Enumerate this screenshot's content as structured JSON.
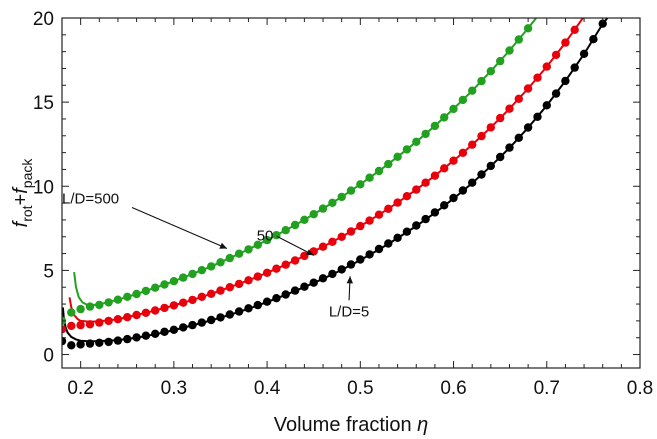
{
  "chart_data": {
    "type": "scatter",
    "title": "",
    "xlabel_main": "Volume fraction ",
    "xlabel_symbol": "η",
    "ylabel_parts": {
      "f1": "f",
      "sub1": "rot",
      "plus": "+",
      "f2": "f",
      "sub2": "pack"
    },
    "xlim": [
      0.18,
      0.8
    ],
    "ylim": [
      -0.8,
      20
    ],
    "x_ticks": [
      0.2,
      0.3,
      0.4,
      0.5,
      0.6,
      0.7,
      0.8
    ],
    "x_tick_labels": [
      "0.2",
      "0.3",
      "0.4",
      "0.5",
      "0.6",
      "0.7",
      "0.8"
    ],
    "y_ticks": [
      0,
      5,
      10,
      15,
      20
    ],
    "y_tick_labels": [
      "0",
      "5",
      "10",
      "15",
      "20"
    ],
    "grid": false,
    "annotations": [
      {
        "text": "L/D=500",
        "series": "L/D=500",
        "x": 0.357,
        "y": 6.3
      },
      {
        "text": "50",
        "series": "L/D=50",
        "x": 0.45,
        "y": 5.9
      },
      {
        "text": "L/D=5",
        "series": "L/D=5",
        "x": 0.489,
        "y": 4.65
      }
    ],
    "series": [
      {
        "name": "L/D=5",
        "color": "#000000",
        "points": [
          [
            0.18,
            0.8
          ],
          [
            0.19,
            0.55
          ],
          [
            0.2,
            0.6
          ],
          [
            0.21,
            0.65
          ],
          [
            0.22,
            0.7
          ],
          [
            0.23,
            0.75
          ],
          [
            0.24,
            0.83
          ],
          [
            0.25,
            0.92
          ],
          [
            0.26,
            1.02
          ],
          [
            0.27,
            1.12
          ],
          [
            0.28,
            1.23
          ],
          [
            0.29,
            1.35
          ],
          [
            0.3,
            1.47
          ],
          [
            0.31,
            1.61
          ],
          [
            0.32,
            1.75
          ],
          [
            0.33,
            1.9
          ],
          [
            0.34,
            2.05
          ],
          [
            0.35,
            2.21
          ],
          [
            0.36,
            2.38
          ],
          [
            0.37,
            2.56
          ],
          [
            0.38,
            2.75
          ],
          [
            0.39,
            2.94
          ],
          [
            0.4,
            3.14
          ],
          [
            0.41,
            3.35
          ],
          [
            0.42,
            3.57
          ],
          [
            0.43,
            3.8
          ],
          [
            0.44,
            4.03
          ],
          [
            0.45,
            4.27
          ],
          [
            0.46,
            4.53
          ],
          [
            0.47,
            4.79
          ],
          [
            0.48,
            5.06
          ],
          [
            0.49,
            5.35
          ],
          [
            0.5,
            5.65
          ],
          [
            0.51,
            5.95
          ],
          [
            0.52,
            6.27
          ],
          [
            0.53,
            6.6
          ],
          [
            0.54,
            6.94
          ],
          [
            0.55,
            7.3
          ],
          [
            0.56,
            7.67
          ],
          [
            0.57,
            8.05
          ],
          [
            0.58,
            8.45
          ],
          [
            0.59,
            8.87
          ],
          [
            0.6,
            9.3
          ],
          [
            0.61,
            9.75
          ],
          [
            0.62,
            10.21
          ],
          [
            0.63,
            10.7
          ],
          [
            0.64,
            11.21
          ],
          [
            0.65,
            11.74
          ],
          [
            0.66,
            12.3
          ],
          [
            0.67,
            12.88
          ],
          [
            0.68,
            13.49
          ],
          [
            0.69,
            14.13
          ],
          [
            0.7,
            14.81
          ],
          [
            0.71,
            15.51
          ],
          [
            0.72,
            16.26
          ],
          [
            0.73,
            17.05
          ],
          [
            0.74,
            17.87
          ],
          [
            0.75,
            18.74
          ],
          [
            0.76,
            19.66
          ]
        ],
        "curve": [
          [
            0.181,
            2.8
          ],
          [
            0.182,
            2.1
          ],
          [
            0.184,
            1.6
          ],
          [
            0.186,
            1.3
          ],
          [
            0.19,
            1.05
          ],
          [
            0.195,
            0.9
          ],
          [
            0.2,
            0.82
          ],
          [
            0.21,
            0.78
          ],
          [
            0.22,
            0.8
          ],
          [
            0.24,
            0.86
          ],
          [
            0.26,
            1.0
          ],
          [
            0.28,
            1.2
          ],
          [
            0.3,
            1.45
          ],
          [
            0.32,
            1.73
          ],
          [
            0.34,
            2.03
          ],
          [
            0.36,
            2.36
          ],
          [
            0.38,
            2.72
          ],
          [
            0.4,
            3.12
          ],
          [
            0.42,
            3.55
          ],
          [
            0.44,
            4.01
          ],
          [
            0.46,
            4.5
          ],
          [
            0.48,
            5.03
          ],
          [
            0.5,
            5.61
          ],
          [
            0.52,
            6.24
          ],
          [
            0.54,
            6.92
          ],
          [
            0.56,
            7.64
          ],
          [
            0.58,
            8.42
          ],
          [
            0.6,
            9.27
          ],
          [
            0.62,
            10.19
          ],
          [
            0.64,
            11.19
          ],
          [
            0.66,
            12.28
          ],
          [
            0.68,
            13.48
          ],
          [
            0.7,
            14.8
          ],
          [
            0.72,
            16.26
          ],
          [
            0.74,
            17.86
          ],
          [
            0.76,
            19.65
          ],
          [
            0.765,
            20
          ]
        ]
      },
      {
        "name": "L/D=50",
        "color": "#e8000b",
        "points": [
          [
            0.18,
            1.5
          ],
          [
            0.19,
            1.7
          ],
          [
            0.2,
            1.75
          ],
          [
            0.21,
            1.8
          ],
          [
            0.22,
            1.9
          ],
          [
            0.23,
            2.0
          ],
          [
            0.24,
            2.1
          ],
          [
            0.25,
            2.22
          ],
          [
            0.26,
            2.35
          ],
          [
            0.27,
            2.48
          ],
          [
            0.28,
            2.62
          ],
          [
            0.29,
            2.77
          ],
          [
            0.3,
            2.92
          ],
          [
            0.31,
            3.08
          ],
          [
            0.32,
            3.25
          ],
          [
            0.33,
            3.43
          ],
          [
            0.34,
            3.61
          ],
          [
            0.35,
            3.8
          ],
          [
            0.36,
            4.0
          ],
          [
            0.37,
            4.2
          ],
          [
            0.38,
            4.41
          ],
          [
            0.39,
            4.63
          ],
          [
            0.4,
            4.86
          ],
          [
            0.41,
            5.1
          ],
          [
            0.42,
            5.34
          ],
          [
            0.43,
            5.59
          ],
          [
            0.44,
            5.86
          ],
          [
            0.45,
            6.13
          ],
          [
            0.46,
            6.41
          ],
          [
            0.47,
            6.7
          ],
          [
            0.48,
            7.0
          ],
          [
            0.49,
            7.31
          ],
          [
            0.5,
            7.63
          ],
          [
            0.51,
            7.96
          ],
          [
            0.52,
            8.31
          ],
          [
            0.53,
            8.66
          ],
          [
            0.54,
            9.03
          ],
          [
            0.55,
            9.41
          ],
          [
            0.56,
            9.8
          ],
          [
            0.57,
            10.21
          ],
          [
            0.58,
            10.63
          ],
          [
            0.59,
            11.07
          ],
          [
            0.6,
            11.52
          ],
          [
            0.61,
            11.99
          ],
          [
            0.62,
            12.47
          ],
          [
            0.63,
            12.98
          ],
          [
            0.64,
            13.5
          ],
          [
            0.65,
            14.05
          ],
          [
            0.66,
            14.61
          ],
          [
            0.67,
            15.2
          ],
          [
            0.68,
            15.81
          ],
          [
            0.69,
            16.45
          ],
          [
            0.7,
            17.11
          ],
          [
            0.71,
            17.81
          ],
          [
            0.72,
            18.54
          ],
          [
            0.73,
            19.3
          ]
        ],
        "curve": [
          [
            0.188,
            3.4
          ],
          [
            0.19,
            2.8
          ],
          [
            0.193,
            2.35
          ],
          [
            0.197,
            2.1
          ],
          [
            0.2,
            2.0
          ],
          [
            0.21,
            1.95
          ],
          [
            0.22,
            1.98
          ],
          [
            0.24,
            2.1
          ],
          [
            0.26,
            2.35
          ],
          [
            0.28,
            2.62
          ],
          [
            0.3,
            2.92
          ],
          [
            0.32,
            3.25
          ],
          [
            0.34,
            3.61
          ],
          [
            0.36,
            4.0
          ],
          [
            0.38,
            4.41
          ],
          [
            0.4,
            4.86
          ],
          [
            0.42,
            5.34
          ],
          [
            0.44,
            5.86
          ],
          [
            0.46,
            6.41
          ],
          [
            0.48,
            7.0
          ],
          [
            0.5,
            7.63
          ],
          [
            0.52,
            8.31
          ],
          [
            0.54,
            9.03
          ],
          [
            0.56,
            9.8
          ],
          [
            0.58,
            10.63
          ],
          [
            0.6,
            11.52
          ],
          [
            0.62,
            12.47
          ],
          [
            0.64,
            13.5
          ],
          [
            0.66,
            14.61
          ],
          [
            0.68,
            15.81
          ],
          [
            0.7,
            17.11
          ],
          [
            0.72,
            18.54
          ],
          [
            0.74,
            20.1
          ]
        ]
      },
      {
        "name": "L/D=500",
        "color": "#22a020",
        "points": [
          [
            0.18,
            2.0
          ],
          [
            0.19,
            2.5
          ],
          [
            0.2,
            2.7
          ],
          [
            0.21,
            2.85
          ],
          [
            0.22,
            2.95
          ],
          [
            0.23,
            3.1
          ],
          [
            0.24,
            3.26
          ],
          [
            0.25,
            3.43
          ],
          [
            0.26,
            3.6
          ],
          [
            0.27,
            3.78
          ],
          [
            0.28,
            3.97
          ],
          [
            0.29,
            4.16
          ],
          [
            0.3,
            4.36
          ],
          [
            0.31,
            4.57
          ],
          [
            0.32,
            4.79
          ],
          [
            0.33,
            5.01
          ],
          [
            0.34,
            5.24
          ],
          [
            0.35,
            5.48
          ],
          [
            0.36,
            5.73
          ],
          [
            0.37,
            5.99
          ],
          [
            0.38,
            6.25
          ],
          [
            0.39,
            6.52
          ],
          [
            0.4,
            6.8
          ],
          [
            0.41,
            7.09
          ],
          [
            0.42,
            7.39
          ],
          [
            0.43,
            7.7
          ],
          [
            0.44,
            8.01
          ],
          [
            0.45,
            8.34
          ],
          [
            0.46,
            8.67
          ],
          [
            0.47,
            9.02
          ],
          [
            0.48,
            9.37
          ],
          [
            0.49,
            9.74
          ],
          [
            0.5,
            10.12
          ],
          [
            0.51,
            10.51
          ],
          [
            0.52,
            10.91
          ],
          [
            0.53,
            11.32
          ],
          [
            0.54,
            11.75
          ],
          [
            0.55,
            12.19
          ],
          [
            0.56,
            12.64
          ],
          [
            0.57,
            13.11
          ],
          [
            0.58,
            13.59
          ],
          [
            0.59,
            14.09
          ],
          [
            0.6,
            14.6
          ],
          [
            0.61,
            15.13
          ],
          [
            0.62,
            15.68
          ],
          [
            0.63,
            16.25
          ],
          [
            0.64,
            16.84
          ],
          [
            0.65,
            17.44
          ],
          [
            0.66,
            18.07
          ],
          [
            0.67,
            18.72
          ],
          [
            0.68,
            19.39
          ]
        ],
        "curve": [
          [
            0.193,
            4.9
          ],
          [
            0.195,
            4.0
          ],
          [
            0.198,
            3.4
          ],
          [
            0.202,
            3.1
          ],
          [
            0.207,
            2.95
          ],
          [
            0.215,
            2.95
          ],
          [
            0.225,
            3.05
          ],
          [
            0.24,
            3.26
          ],
          [
            0.26,
            3.6
          ],
          [
            0.28,
            3.97
          ],
          [
            0.3,
            4.36
          ],
          [
            0.32,
            4.79
          ],
          [
            0.34,
            5.24
          ],
          [
            0.36,
            5.73
          ],
          [
            0.38,
            6.25
          ],
          [
            0.4,
            6.8
          ],
          [
            0.42,
            7.39
          ],
          [
            0.44,
            8.01
          ],
          [
            0.46,
            8.67
          ],
          [
            0.48,
            9.37
          ],
          [
            0.5,
            10.12
          ],
          [
            0.52,
            10.91
          ],
          [
            0.54,
            11.75
          ],
          [
            0.56,
            12.64
          ],
          [
            0.58,
            13.59
          ],
          [
            0.6,
            14.6
          ],
          [
            0.62,
            15.68
          ],
          [
            0.64,
            16.84
          ],
          [
            0.66,
            18.07
          ],
          [
            0.68,
            19.39
          ],
          [
            0.69,
            20.1
          ]
        ]
      }
    ]
  }
}
